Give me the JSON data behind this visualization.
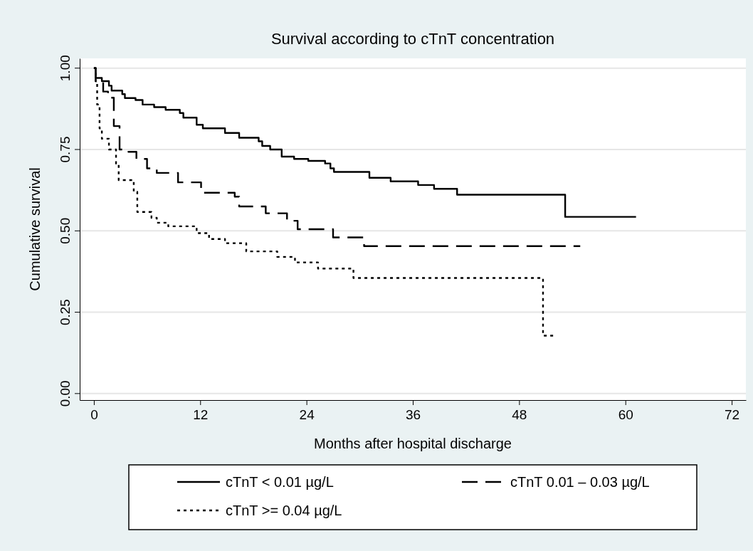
{
  "chart_data": {
    "type": "step",
    "title": "Survival according to cTnT concentration",
    "xlabel": "Months after hospital discharge",
    "ylabel": "Cumulative survival",
    "xlim": [
      -1.6,
      73.6
    ],
    "xticks": [
      0,
      12,
      24,
      36,
      48,
      60,
      72
    ],
    "ylim": [
      -0.02,
      1.03
    ],
    "yticks": [
      {
        "value": 0,
        "label": "0.00"
      },
      {
        "value": 0.25,
        "label": "0.25"
      },
      {
        "value": 0.5,
        "label": "0.50"
      },
      {
        "value": 0.75,
        "label": "0.75"
      },
      {
        "value": 1,
        "label": "1.00"
      }
    ],
    "grid": "y",
    "legend": "bottom",
    "marker": "none",
    "series": [
      {
        "name": "cTnT < 0.01 µg/L",
        "color": "#000000",
        "line_style": "solid",
        "x": [
          0,
          0.2,
          0.9,
          1.7,
          2.0,
          3.2,
          3.5,
          4.7,
          5.5,
          6.8,
          8.1,
          9.7,
          10.1,
          11.6,
          12.3,
          14.8,
          16.4,
          18.6,
          19.0,
          19.9,
          21.2,
          22.6,
          24.2,
          26.1,
          26.7,
          27.1,
          31.1,
          33.5,
          36.6,
          38.4,
          41.0,
          53.2,
          61.2
        ],
        "values": [
          1,
          0.97,
          0.96,
          0.946,
          0.931,
          0.92,
          0.908,
          0.902,
          0.888,
          0.88,
          0.872,
          0.862,
          0.848,
          0.826,
          0.815,
          0.801,
          0.786,
          0.775,
          0.761,
          0.75,
          0.728,
          0.721,
          0.715,
          0.707,
          0.692,
          0.681,
          0.663,
          0.652,
          0.641,
          0.629,
          0.611,
          0.543,
          0.543
        ]
      },
      {
        "name": "cTnT 0.01 – 0.03 µg/L",
        "color": "#000000",
        "line_style": "dashed",
        "x": [
          0,
          0.2,
          1.05,
          1.6,
          2.25,
          2.9,
          3.9,
          4.8,
          6.0,
          7.1,
          9.5,
          12.1,
          15.9,
          16.4,
          19.4,
          21.8,
          23.0,
          27.0,
          30.5,
          54.9
        ],
        "values": [
          1,
          0.96,
          0.928,
          0.909,
          0.822,
          0.75,
          0.743,
          0.721,
          0.692,
          0.678,
          0.649,
          0.617,
          0.605,
          0.575,
          0.554,
          0.531,
          0.505,
          0.48,
          0.453,
          0.453
        ]
      },
      {
        "name": "cTnT >= 0.04 µg/L",
        "color": "#000000",
        "line_style": "dotted",
        "x": [
          0,
          0.2,
          0.37,
          0.64,
          0.9,
          1.7,
          2.5,
          2.8,
          4.5,
          4.9,
          6.5,
          7.1,
          8.4,
          11.6,
          13.0,
          14.8,
          17.2,
          20.7,
          22.7,
          25.3,
          29.3,
          50.7,
          52.0
        ],
        "values": [
          1,
          0.96,
          0.888,
          0.815,
          0.783,
          0.75,
          0.707,
          0.656,
          0.62,
          0.558,
          0.54,
          0.525,
          0.514,
          0.493,
          0.475,
          0.462,
          0.437,
          0.42,
          0.403,
          0.384,
          0.355,
          0.178,
          0.178
        ]
      }
    ]
  }
}
